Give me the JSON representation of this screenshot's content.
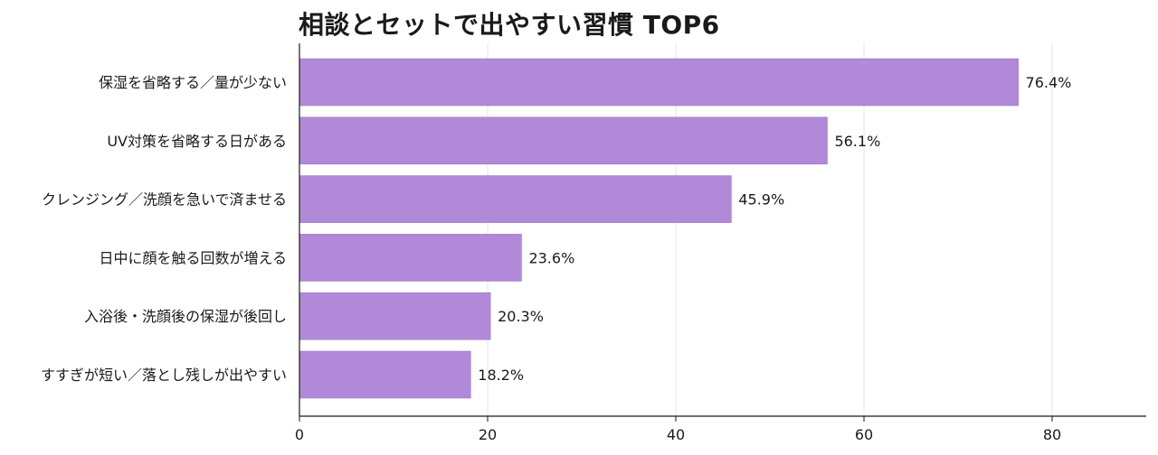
{
  "chart_data": {
    "type": "bar",
    "orientation": "horizontal",
    "title": "相談とセットで出やすい習慣 TOP6",
    "categories": [
      "保湿を省略する／量が少ない",
      "UV対策を省略する日がある",
      "クレンジング／洗顔を急いで済ませる",
      "日中に顔を触る回数が増える",
      "入浴後・洗顔後の保湿が後回し",
      "すすぎが短い／落とし残しが出やすい"
    ],
    "values": [
      76.4,
      56.1,
      45.9,
      23.6,
      20.3,
      18.2
    ],
    "value_labels": [
      "76.4%",
      "56.1%",
      "45.9%",
      "23.6%",
      "20.3%",
      "18.2%"
    ],
    "xlim": [
      0,
      90
    ],
    "xticks": [
      0,
      20,
      40,
      60,
      80
    ],
    "xlabel": "",
    "ylabel": "",
    "grid": "vertical",
    "legend": "none",
    "bar_color": "#b08ad8"
  }
}
